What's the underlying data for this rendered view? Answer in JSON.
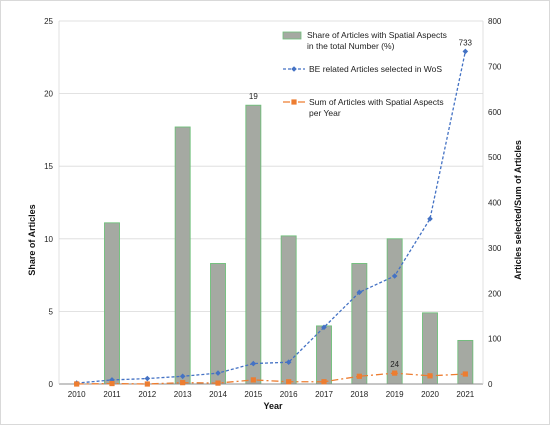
{
  "chart_data": {
    "type": "bar",
    "categories": [
      "2010",
      "2011",
      "2012",
      "2013",
      "2014",
      "2015",
      "2016",
      "2017",
      "2018",
      "2019",
      "2020",
      "2021"
    ],
    "xlabel": "Year",
    "ylabel": "Share of Articles",
    "y2label": "Articles selected/Sum of Articles",
    "ylim": [
      0,
      25
    ],
    "yticks": [
      "0",
      "5",
      "10",
      "15",
      "20",
      "25"
    ],
    "y2lim": [
      0,
      800
    ],
    "y2ticks": [
      "0",
      "100",
      "200",
      "300",
      "400",
      "500",
      "600",
      "700",
      "800"
    ],
    "grid": true,
    "legend": "top-right",
    "series": [
      {
        "name": "Share of Articles with Spatial Aspects in the total Number (%)",
        "legend_lines": [
          "Share of Articles with Spatial Aspects",
          "in the total Number (%)"
        ],
        "type": "bar",
        "axis": "left",
        "color": "#a5a9a2",
        "edge_color": "#6fbf7a",
        "values": [
          0,
          11.1,
          0,
          17.7,
          8.3,
          19.2,
          10.2,
          4.0,
          8.3,
          10.0,
          4.9,
          3.0
        ]
      },
      {
        "name": "BE related Articles selected in WoS",
        "legend_lines": [
          "BE related Articles selected in WoS"
        ],
        "type": "line",
        "axis": "right",
        "color": "#4472c4",
        "values": [
          2,
          9,
          12,
          17,
          24,
          45,
          48,
          125,
          202,
          238,
          364,
          733
        ]
      },
      {
        "name": "Sum of Articles with Spatial Aspects per Year",
        "legend_lines": [
          "Sum of Articles with Spatial Aspects",
          "per Year"
        ],
        "type": "line",
        "axis": "right",
        "color": "#ed7d31",
        "values": [
          0,
          1,
          0,
          3,
          2,
          9,
          5,
          5,
          17,
          24,
          18,
          22
        ]
      }
    ],
    "data_labels": [
      {
        "series": 0,
        "index": 5,
        "text": "19"
      },
      {
        "series": 1,
        "index": 11,
        "text": "733"
      },
      {
        "series": 2,
        "index": 9,
        "text": "24"
      }
    ]
  }
}
